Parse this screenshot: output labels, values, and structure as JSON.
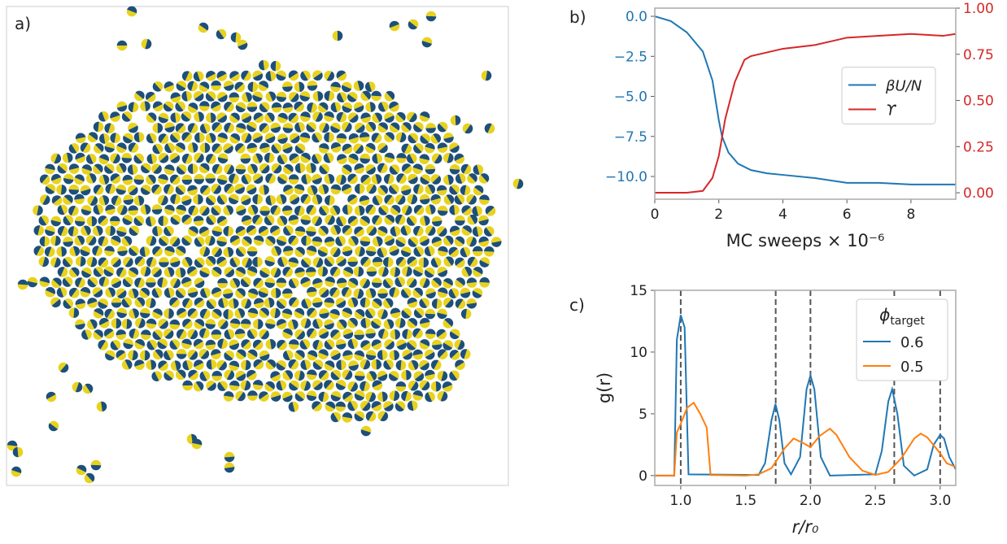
{
  "panel_labels": [
    "a)",
    "b)",
    "c)"
  ],
  "chart_data": [
    {
      "type": "line",
      "xlabel": "MC sweeps × 10⁻⁶",
      "xlim": [
        0,
        9.4
      ],
      "xticks": [
        0,
        2,
        4,
        6,
        8
      ],
      "ylim": [
        -11.42,
        0.51
      ],
      "yticks": [
        {
          "value": -10,
          "label": "−10.0"
        },
        {
          "value": -7.5,
          "label": "−7.5"
        },
        {
          "value": -5,
          "label": "−5.0"
        },
        {
          "value": -2.5,
          "label": "−2.5"
        },
        {
          "value": 0,
          "label": "0.0"
        }
      ],
      "y2lim": [
        -0.035,
        1.0
      ],
      "y2ticks": [
        {
          "value": 0,
          "label": "0.00"
        },
        {
          "value": 0.25,
          "label": "0.25"
        },
        {
          "value": 0.5,
          "label": "0.50"
        },
        {
          "value": 0.75,
          "label": "0.75"
        },
        {
          "value": 1,
          "label": "1.00"
        }
      ],
      "legend_loc": "center right",
      "series": [
        {
          "name": "βU/N",
          "color": "#1f77b4",
          "x": [
            0,
            0.5,
            1,
            1.5,
            1.8,
            2,
            2.1,
            2.3,
            2.6,
            3,
            3.5,
            4,
            5,
            6,
            7,
            8,
            9,
            9.4
          ],
          "values": [
            0,
            -0.3,
            -1,
            -2.2,
            -4,
            -6.5,
            -7.5,
            -8.5,
            -9.2,
            -9.6,
            -9.8,
            -9.9,
            -10.1,
            -10.4,
            -10.4,
            -10.5,
            -10.5,
            -10.5
          ]
        },
        {
          "name": "ϒ",
          "color": "#d62728",
          "axis": "y2",
          "x": [
            0,
            1,
            1.5,
            1.8,
            2,
            2.2,
            2.5,
            2.8,
            3,
            4,
            5,
            6,
            7,
            8,
            9,
            9.4
          ],
          "values": [
            0,
            0,
            0.01,
            0.08,
            0.2,
            0.4,
            0.6,
            0.72,
            0.74,
            0.78,
            0.8,
            0.84,
            0.85,
            0.86,
            0.85,
            0.86
          ]
        }
      ]
    },
    {
      "type": "line",
      "xlabel": "r/r₀",
      "ylabel": "g(r)",
      "xlim": [
        0.8,
        3.12
      ],
      "xticks": [
        {
          "value": 1,
          "label": "1.0"
        },
        {
          "value": 1.5,
          "label": "1.5"
        },
        {
          "value": 2,
          "label": "2.0"
        },
        {
          "value": 2.5,
          "label": "2.5"
        },
        {
          "value": 3,
          "label": "3.0"
        }
      ],
      "ylim": [
        -0.8,
        15
      ],
      "yticks": [
        0,
        5,
        10,
        15
      ],
      "vlines": [
        1,
        1.732,
        2,
        2.646,
        3
      ],
      "legend_title": {
        "symbol": "ϕ",
        "subscript": "target"
      },
      "legend_loc": "upper right",
      "series": [
        {
          "name": "0.6",
          "color": "#1f77b4",
          "x": [
            0.8,
            0.95,
            0.97,
            1.0,
            1.03,
            1.05,
            1.06,
            1.6,
            1.65,
            1.7,
            1.73,
            1.76,
            1.8,
            1.85,
            1.92,
            1.97,
            2.0,
            2.03,
            2.08,
            2.15,
            2.5,
            2.55,
            2.6,
            2.63,
            2.67,
            2.72,
            2.8,
            2.9,
            2.95,
            3.0,
            3.03,
            3.07,
            3.12
          ],
          "values": [
            0,
            0,
            11,
            13,
            12,
            4,
            0.1,
            0.05,
            1,
            4.5,
            5.8,
            4.5,
            1,
            0.1,
            1.5,
            7,
            8.1,
            7,
            1.5,
            0,
            0.1,
            2,
            6,
            7,
            5,
            0.8,
            0,
            0.5,
            2.5,
            3.3,
            3,
            1.5,
            0.5
          ]
        },
        {
          "name": "0.5",
          "color": "#ff7f0e",
          "x": [
            0.8,
            0.95,
            0.97,
            1.0,
            1.05,
            1.1,
            1.15,
            1.2,
            1.23,
            1.5,
            1.6,
            1.7,
            1.8,
            1.87,
            1.95,
            2.0,
            2.07,
            2.15,
            2.2,
            2.3,
            2.4,
            2.5,
            2.6,
            2.7,
            2.8,
            2.85,
            2.9,
            3.0,
            3.05,
            3.12
          ],
          "values": [
            0,
            0,
            3.5,
            4.2,
            5.5,
            5.9,
            5,
            3.9,
            0.05,
            0,
            0.1,
            0.6,
            2.2,
            3,
            2.6,
            2.3,
            3.2,
            3.8,
            3.3,
            1.5,
            0.4,
            0.05,
            0.3,
            1.4,
            3,
            3.4,
            3.1,
            1.8,
            1,
            0.7
          ]
        }
      ]
    }
  ]
}
